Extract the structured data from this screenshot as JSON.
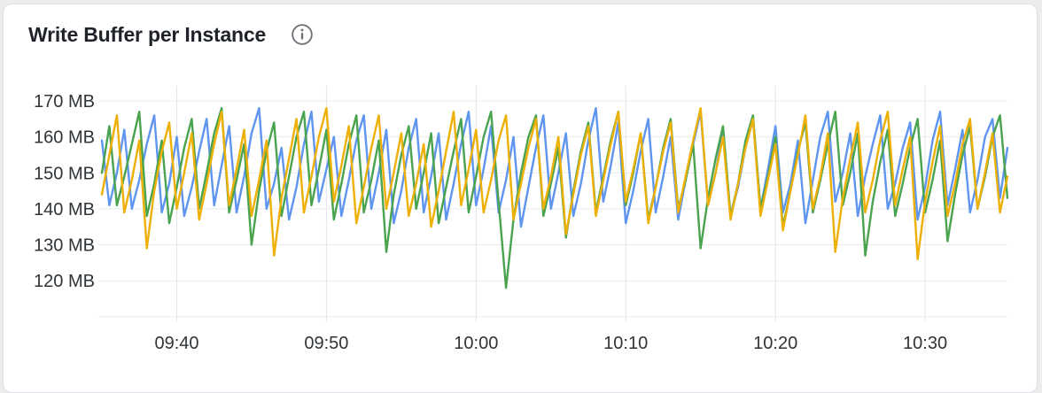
{
  "panel": {
    "title": "Write Buffer per Instance"
  },
  "colors": {
    "page_background": "#ebedef",
    "panel_background": "#ffffff",
    "panel_border": "#dfe1e4",
    "title_text": "#1f2329",
    "axis_text": "#2f3438",
    "grid_h": "#e8eaec",
    "grid_v": "#e3e5e8",
    "series_blue": "#5f95ef",
    "series_green": "#4aa34f",
    "series_yellow": "#eeb005"
  },
  "chart_data": {
    "type": "line",
    "title": "Write Buffer per Instance",
    "xlabel": "",
    "ylabel": "",
    "unit": "MB",
    "grid": true,
    "legend_position": "none",
    "xlim_minutes": [
      0,
      60.5
    ],
    "step_minutes": 0.5,
    "time_start": "09:35",
    "time_end": "10:36",
    "ylim": [
      109.7,
      174.2
    ],
    "x_ticks": [
      {
        "t": 5,
        "label": "09:40"
      },
      {
        "t": 15,
        "label": "09:50"
      },
      {
        "t": 25,
        "label": "10:00"
      },
      {
        "t": 35,
        "label": "10:10"
      },
      {
        "t": 45,
        "label": "10:20"
      },
      {
        "t": 55,
        "label": "10:30"
      }
    ],
    "y_ticks": [
      {
        "v": 170,
        "label": "170 MB"
      },
      {
        "v": 160,
        "label": "160 MB"
      },
      {
        "v": 150,
        "label": "150 MB"
      },
      {
        "v": 140,
        "label": "140 MB"
      },
      {
        "v": 130,
        "label": "130 MB"
      },
      {
        "v": 120,
        "label": "120 MB"
      }
    ],
    "y_gridlines": [
      170,
      160,
      150,
      140,
      130,
      120,
      110
    ],
    "series": [
      {
        "name": "blue",
        "color": "#5f95ef",
        "values": [
          159,
          141,
          150,
          162,
          140,
          148,
          158,
          166,
          139,
          147,
          160,
          138,
          146,
          156,
          165,
          141,
          152,
          163,
          139,
          149,
          161,
          168,
          140,
          147,
          157,
          137,
          146,
          158,
          167,
          142,
          151,
          160,
          138,
          148,
          159,
          166,
          140,
          150,
          162,
          136,
          145,
          157,
          165,
          139,
          149,
          161,
          137,
          147,
          158,
          167,
          141,
          151,
          163,
          139,
          148,
          160,
          135,
          146,
          157,
          166,
          140,
          150,
          161,
          138,
          147,
          159,
          168,
          142,
          152,
          164,
          136,
          145,
          156,
          165,
          139,
          149,
          160,
          137,
          148,
          158,
          167,
          141,
          150,
          162,
          138,
          146,
          157,
          165,
          140,
          151,
          163,
          139,
          147,
          159,
          136,
          148,
          160,
          167,
          142,
          150,
          161,
          138,
          149,
          158,
          166,
          140,
          147,
          157,
          164,
          137,
          146,
          159,
          167,
          141,
          151,
          162,
          139,
          148,
          160,
          165,
          143,
          157
        ]
      },
      {
        "name": "green",
        "color": "#4aa34f",
        "values": [
          150,
          163,
          141,
          149,
          158,
          167,
          138,
          147,
          159,
          136,
          146,
          157,
          165,
          140,
          150,
          161,
          168,
          139,
          148,
          158,
          130,
          145,
          156,
          164,
          138,
          149,
          160,
          167,
          141,
          151,
          162,
          137,
          147,
          158,
          166,
          139,
          148,
          159,
          128,
          144,
          155,
          163,
          140,
          150,
          161,
          136,
          146,
          156,
          165,
          139,
          149,
          160,
          167,
          142,
          118,
          137,
          150,
          160,
          166,
          138,
          147,
          157,
          132,
          145,
          156,
          164,
          139,
          149,
          159,
          167,
          141,
          150,
          161,
          137,
          146,
          157,
          165,
          140,
          148,
          158,
          129,
          143,
          154,
          163,
          138,
          147,
          159,
          166,
          140,
          149,
          160,
          135,
          145,
          156,
          164,
          139,
          148,
          158,
          167,
          141,
          150,
          161,
          127,
          142,
          153,
          162,
          138,
          147,
          157,
          165,
          139,
          148,
          159,
          131,
          144,
          155,
          163,
          140,
          149,
          160,
          166,
          143
        ]
      },
      {
        "name": "yellow",
        "color": "#eeb005",
        "values": [
          144,
          155,
          166,
          139,
          148,
          159,
          129,
          145,
          156,
          164,
          140,
          150,
          161,
          137,
          147,
          158,
          167,
          141,
          151,
          162,
          138,
          148,
          159,
          127,
          143,
          154,
          165,
          139,
          149,
          160,
          168,
          142,
          152,
          163,
          136,
          146,
          157,
          166,
          140,
          150,
          161,
          138,
          147,
          158,
          135,
          145,
          156,
          167,
          141,
          151,
          162,
          139,
          148,
          159,
          166,
          137,
          147,
          157,
          165,
          140,
          149,
          160,
          133,
          144,
          155,
          163,
          138,
          148,
          158,
          167,
          142,
          151,
          161,
          136,
          146,
          156,
          164,
          139,
          149,
          159,
          168,
          141,
          150,
          160,
          137,
          147,
          157,
          165,
          138,
          148,
          158,
          134,
          145,
          155,
          166,
          140,
          149,
          161,
          128,
          143,
          154,
          164,
          139,
          148,
          159,
          167,
          141,
          151,
          160,
          126,
          142,
          153,
          163,
          138,
          147,
          158,
          165,
          140,
          150,
          161,
          139,
          149
        ]
      }
    ]
  }
}
